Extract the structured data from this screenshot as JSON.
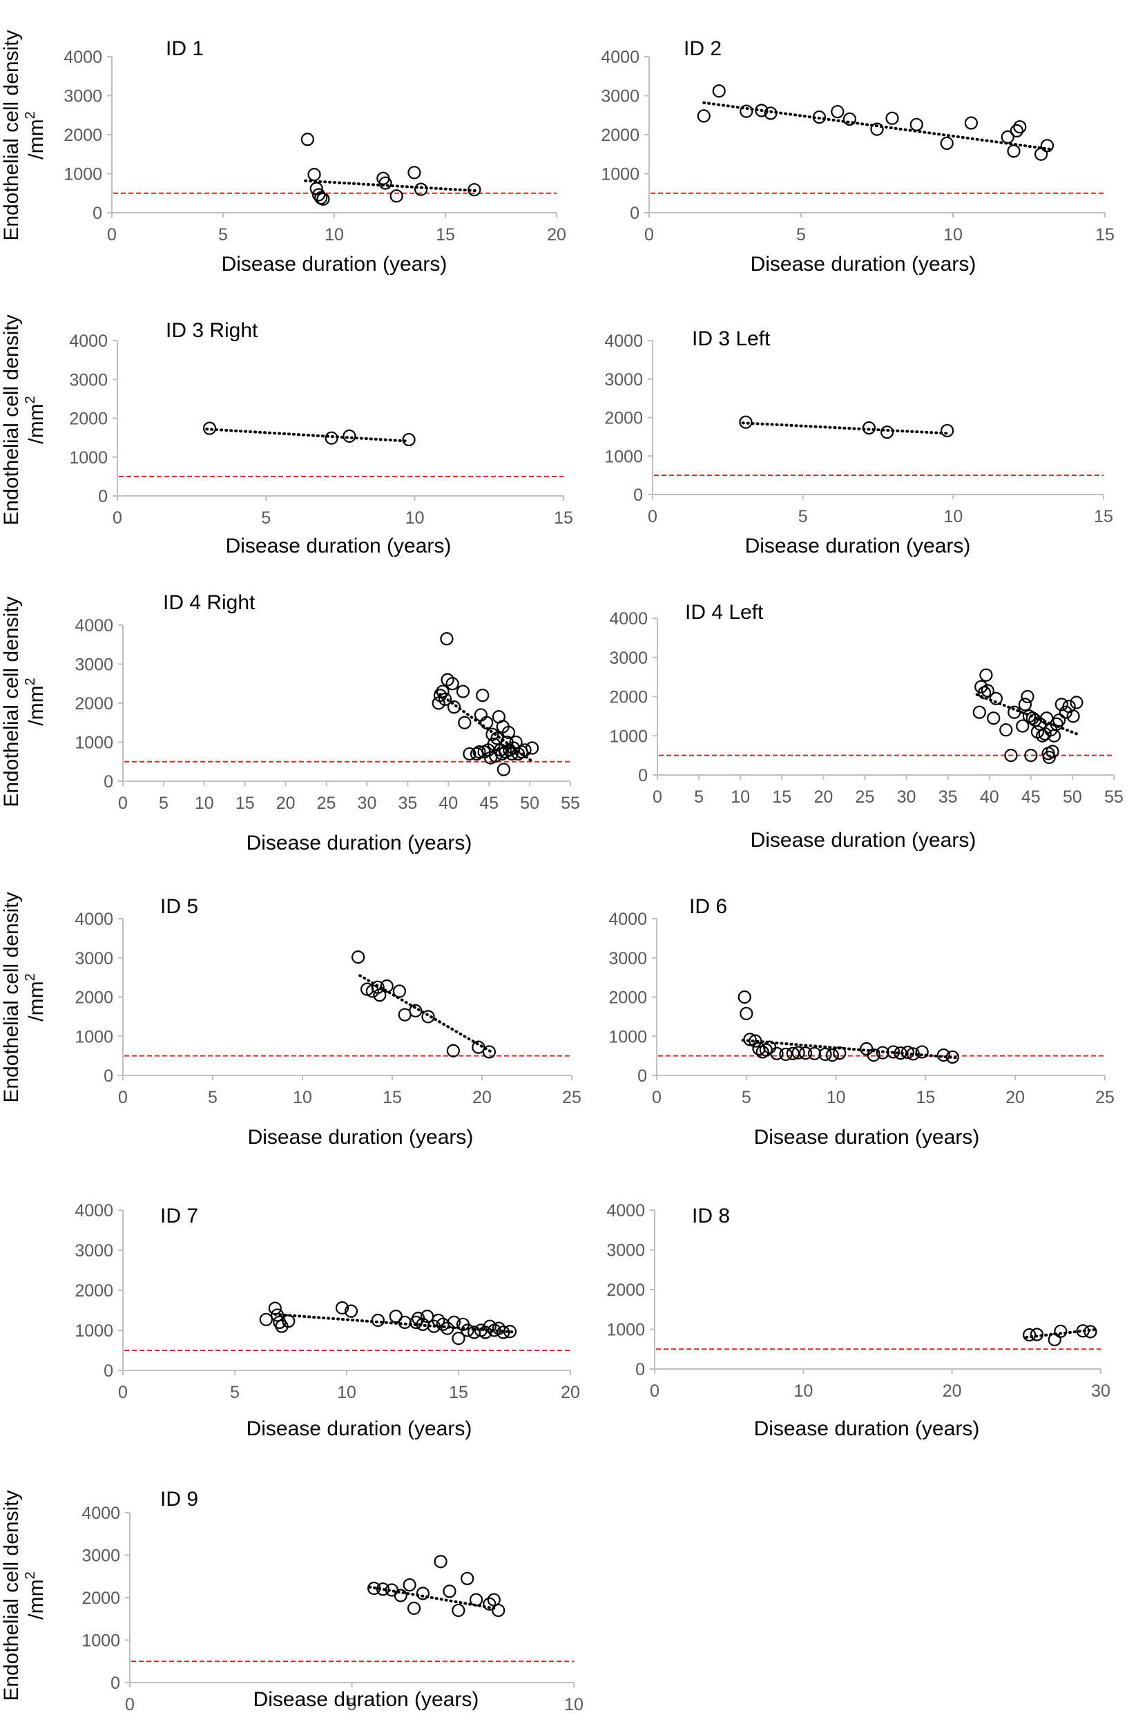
{
  "figure": {
    "y_axis_label_line1": "Endothelial cell density",
    "y_axis_label_line2": "/mm",
    "y_axis_label_sup": "2",
    "x_axis_label": "Disease duration (years)"
  },
  "colors": {
    "axis": "#bfbfbf",
    "tick_text": "#595959",
    "marker_stroke": "#000000",
    "trendline": "#000000",
    "threshold": "#d62728"
  },
  "chart_data": [
    {
      "type": "scatter",
      "title": "ID 1",
      "xlabel": "Disease duration (years)",
      "ylabel": "Endothelial cell density /mm2",
      "xlim": [
        0,
        20
      ],
      "ylim": [
        0,
        4000
      ],
      "xticks": [
        0,
        5,
        10,
        15,
        20
      ],
      "yticks": [
        0,
        1000,
        2000,
        3000,
        4000
      ],
      "threshold": 500,
      "trend": [
        [
          8.7,
          820
        ],
        [
          16.5,
          560
        ]
      ],
      "points": [
        [
          8.8,
          1880
        ],
        [
          9.1,
          980
        ],
        [
          9.2,
          620
        ],
        [
          9.3,
          460
        ],
        [
          9.4,
          380
        ],
        [
          9.5,
          350
        ],
        [
          12.2,
          880
        ],
        [
          12.3,
          760
        ],
        [
          12.8,
          430
        ],
        [
          13.6,
          1030
        ],
        [
          13.9,
          600
        ],
        [
          16.3,
          590
        ]
      ]
    },
    {
      "type": "scatter",
      "title": "ID 2",
      "xlabel": "Disease duration (years)",
      "ylabel": "Endothelial cell density /mm2",
      "xlim": [
        0,
        15
      ],
      "ylim": [
        0,
        4000
      ],
      "xticks": [
        0,
        5,
        10,
        15
      ],
      "yticks": [
        0,
        1000,
        2000,
        3000,
        4000
      ],
      "threshold": 500,
      "trend": [
        [
          1.8,
          2820
        ],
        [
          13.2,
          1630
        ]
      ],
      "points": [
        [
          1.8,
          2480
        ],
        [
          2.3,
          3120
        ],
        [
          3.2,
          2600
        ],
        [
          3.7,
          2620
        ],
        [
          4.0,
          2550
        ],
        [
          5.6,
          2450
        ],
        [
          6.2,
          2590
        ],
        [
          6.6,
          2400
        ],
        [
          7.5,
          2140
        ],
        [
          8.0,
          2420
        ],
        [
          8.8,
          2260
        ],
        [
          9.8,
          1780
        ],
        [
          10.6,
          2300
        ],
        [
          11.8,
          1940
        ],
        [
          12.0,
          1580
        ],
        [
          12.1,
          2100
        ],
        [
          12.2,
          2200
        ],
        [
          12.9,
          1500
        ],
        [
          13.1,
          1720
        ]
      ]
    },
    {
      "type": "scatter",
      "title": "ID 3 Right",
      "xlabel": "Disease duration (years)",
      "ylabel": "Endothelial cell density /mm2",
      "xlim": [
        0,
        15
      ],
      "ylim": [
        0,
        4000
      ],
      "xticks": [
        0,
        5,
        10,
        15
      ],
      "yticks": [
        0,
        1000,
        2000,
        3000,
        4000
      ],
      "threshold": 500,
      "trend": [
        [
          3.0,
          1720
        ],
        [
          9.8,
          1410
        ]
      ],
      "points": [
        [
          3.1,
          1740
        ],
        [
          7.2,
          1490
        ],
        [
          7.8,
          1540
        ],
        [
          9.8,
          1450
        ]
      ]
    },
    {
      "type": "scatter",
      "title": "ID 3 Left",
      "xlabel": "Disease duration (years)",
      "ylabel": "Endothelial cell density /mm2",
      "xlim": [
        0,
        15
      ],
      "ylim": [
        0,
        4000
      ],
      "xticks": [
        0,
        5,
        10,
        15
      ],
      "yticks": [
        0,
        1000,
        2000,
        3000,
        4000
      ],
      "threshold": 500,
      "trend": [
        [
          3.0,
          1860
        ],
        [
          9.8,
          1590
        ]
      ],
      "points": [
        [
          3.1,
          1880
        ],
        [
          7.2,
          1730
        ],
        [
          7.8,
          1620
        ],
        [
          9.8,
          1660
        ]
      ]
    },
    {
      "type": "scatter",
      "title": "ID 4 Right",
      "xlabel": "Disease duration (years)",
      "ylabel": "Endothelial cell density /mm2",
      "xlim": [
        0,
        55
      ],
      "ylim": [
        0,
        4000
      ],
      "xticks": [
        0,
        5,
        10,
        15,
        20,
        25,
        30,
        35,
        40,
        45,
        50,
        55
      ],
      "yticks": [
        0,
        1000,
        2000,
        3000,
        4000
      ],
      "threshold": 500,
      "trend": [
        [
          38.5,
          2300
        ],
        [
          50.5,
          480
        ]
      ],
      "points": [
        [
          38.8,
          2000
        ],
        [
          39.0,
          2200
        ],
        [
          39.3,
          2300
        ],
        [
          39.6,
          2100
        ],
        [
          39.8,
          3650
        ],
        [
          39.9,
          2600
        ],
        [
          40.5,
          2500
        ],
        [
          40.7,
          1900
        ],
        [
          41.8,
          2300
        ],
        [
          42.0,
          1500
        ],
        [
          42.6,
          700
        ],
        [
          43.5,
          700
        ],
        [
          43.8,
          750
        ],
        [
          44.0,
          1700
        ],
        [
          44.2,
          2200
        ],
        [
          44.4,
          750
        ],
        [
          44.7,
          1500
        ],
        [
          44.9,
          800
        ],
        [
          45.2,
          600
        ],
        [
          45.4,
          1200
        ],
        [
          45.6,
          950
        ],
        [
          45.8,
          650
        ],
        [
          46.0,
          1100
        ],
        [
          46.2,
          1650
        ],
        [
          46.4,
          800
        ],
        [
          46.6,
          700
        ],
        [
          46.7,
          1400
        ],
        [
          46.8,
          300
        ],
        [
          47.0,
          750
        ],
        [
          47.2,
          1000
        ],
        [
          47.4,
          1250
        ],
        [
          47.5,
          800
        ],
        [
          47.8,
          700
        ],
        [
          48.0,
          850
        ],
        [
          48.3,
          1000
        ],
        [
          48.6,
          700
        ],
        [
          49.0,
          750
        ],
        [
          49.4,
          800
        ],
        [
          50.3,
          850
        ]
      ]
    },
    {
      "type": "scatter",
      "title": "ID 4 Left",
      "xlabel": "Disease duration (years)",
      "ylabel": "Endothelial cell density /mm2",
      "xlim": [
        0,
        55
      ],
      "ylim": [
        0,
        4000
      ],
      "xticks": [
        0,
        5,
        10,
        15,
        20,
        25,
        30,
        35,
        40,
        45,
        50,
        55
      ],
      "yticks": [
        0,
        1000,
        2000,
        3000,
        4000
      ],
      "threshold": 500,
      "trend": [
        [
          38.5,
          2050
        ],
        [
          50.5,
          1050
        ]
      ],
      "points": [
        [
          38.8,
          1600
        ],
        [
          39.0,
          2250
        ],
        [
          39.4,
          2100
        ],
        [
          39.6,
          2550
        ],
        [
          39.8,
          2150
        ],
        [
          40.5,
          1450
        ],
        [
          40.8,
          1950
        ],
        [
          42.0,
          1150
        ],
        [
          42.6,
          500
        ],
        [
          43.0,
          1600
        ],
        [
          44.0,
          1250
        ],
        [
          44.3,
          1800
        ],
        [
          44.6,
          2000
        ],
        [
          44.8,
          1500
        ],
        [
          45.0,
          500
        ],
        [
          45.2,
          1450
        ],
        [
          45.5,
          1400
        ],
        [
          45.8,
          1100
        ],
        [
          46.1,
          1300
        ],
        [
          46.4,
          1000
        ],
        [
          46.7,
          1050
        ],
        [
          46.9,
          1450
        ],
        [
          47.1,
          550
        ],
        [
          47.2,
          450
        ],
        [
          47.4,
          1150
        ],
        [
          47.6,
          600
        ],
        [
          47.8,
          1000
        ],
        [
          48.1,
          1300
        ],
        [
          48.4,
          1400
        ],
        [
          48.7,
          1800
        ],
        [
          49.2,
          1600
        ],
        [
          49.6,
          1750
        ],
        [
          50.1,
          1500
        ],
        [
          50.5,
          1850
        ]
      ]
    },
    {
      "type": "scatter",
      "title": "ID 5",
      "xlabel": "Disease duration (years)",
      "ylabel": "Endothelial cell density /mm2",
      "xlim": [
        0,
        25
      ],
      "ylim": [
        0,
        4000
      ],
      "xticks": [
        0,
        5,
        10,
        15,
        20,
        25
      ],
      "yticks": [
        0,
        1000,
        2000,
        3000,
        4000
      ],
      "threshold": 500,
      "trend": [
        [
          13.2,
          2550
        ],
        [
          20.6,
          580
        ]
      ],
      "points": [
        [
          13.1,
          3020
        ],
        [
          13.6,
          2200
        ],
        [
          13.9,
          2150
        ],
        [
          14.2,
          2250
        ],
        [
          14.3,
          2050
        ],
        [
          14.7,
          2280
        ],
        [
          15.4,
          2150
        ],
        [
          15.7,
          1550
        ],
        [
          16.3,
          1650
        ],
        [
          17.0,
          1500
        ],
        [
          18.4,
          630
        ],
        [
          19.8,
          720
        ],
        [
          20.4,
          600
        ]
      ]
    },
    {
      "type": "scatter",
      "title": "ID 6",
      "xlabel": "Disease duration (years)",
      "ylabel": "Endothelial cell density /mm2",
      "xlim": [
        0,
        25
      ],
      "ylim": [
        0,
        4000
      ],
      "xticks": [
        0,
        5,
        10,
        15,
        20,
        25
      ],
      "yticks": [
        0,
        1000,
        2000,
        3000,
        4000
      ],
      "threshold": 500,
      "trend": [
        [
          4.8,
          900
        ],
        [
          16.8,
          450
        ]
      ],
      "points": [
        [
          4.9,
          2000
        ],
        [
          5.0,
          1580
        ],
        [
          5.2,
          920
        ],
        [
          5.5,
          880
        ],
        [
          5.7,
          680
        ],
        [
          5.9,
          600
        ],
        [
          6.1,
          650
        ],
        [
          6.3,
          720
        ],
        [
          6.7,
          560
        ],
        [
          7.2,
          540
        ],
        [
          7.6,
          560
        ],
        [
          7.9,
          580
        ],
        [
          8.3,
          570
        ],
        [
          8.8,
          560
        ],
        [
          9.4,
          540
        ],
        [
          9.8,
          520
        ],
        [
          10.2,
          570
        ],
        [
          11.7,
          680
        ],
        [
          12.1,
          520
        ],
        [
          12.6,
          580
        ],
        [
          13.2,
          600
        ],
        [
          13.6,
          570
        ],
        [
          14.0,
          590
        ],
        [
          14.3,
          550
        ],
        [
          14.8,
          600
        ],
        [
          16.0,
          520
        ],
        [
          16.5,
          470
        ]
      ]
    },
    {
      "type": "scatter",
      "title": "ID 7",
      "xlabel": "Disease duration (years)",
      "ylabel": "Endothelial cell density /mm2",
      "xlim": [
        0,
        20
      ],
      "ylim": [
        0,
        4000
      ],
      "xticks": [
        0,
        5,
        10,
        15,
        20
      ],
      "yticks": [
        0,
        1000,
        2000,
        3000,
        4000
      ],
      "threshold": 500,
      "trend": [
        [
          6.8,
          1400
        ],
        [
          17.4,
          960
        ]
      ],
      "points": [
        [
          6.4,
          1270
        ],
        [
          6.8,
          1550
        ],
        [
          6.9,
          1380
        ],
        [
          7.0,
          1200
        ],
        [
          7.1,
          1100
        ],
        [
          7.4,
          1230
        ],
        [
          9.8,
          1560
        ],
        [
          10.2,
          1480
        ],
        [
          11.4,
          1250
        ],
        [
          12.2,
          1350
        ],
        [
          12.6,
          1200
        ],
        [
          13.1,
          1200
        ],
        [
          13.2,
          1300
        ],
        [
          13.4,
          1150
        ],
        [
          13.6,
          1350
        ],
        [
          13.9,
          1100
        ],
        [
          14.1,
          1250
        ],
        [
          14.3,
          1150
        ],
        [
          14.5,
          1050
        ],
        [
          14.8,
          1200
        ],
        [
          15.0,
          800
        ],
        [
          15.2,
          1150
        ],
        [
          15.4,
          1000
        ],
        [
          15.7,
          950
        ],
        [
          16.0,
          1000
        ],
        [
          16.2,
          950
        ],
        [
          16.4,
          1100
        ],
        [
          16.6,
          1000
        ],
        [
          16.8,
          1050
        ],
        [
          17.0,
          950
        ],
        [
          17.3,
          970
        ]
      ]
    },
    {
      "type": "scatter",
      "title": "ID 8",
      "xlabel": "Disease duration (years)",
      "ylabel": "Endothelial cell density /mm2",
      "xlim": [
        0,
        30
      ],
      "ylim": [
        0,
        4000
      ],
      "xticks": [
        0,
        10,
        20,
        30
      ],
      "yticks": [
        0,
        1000,
        2000,
        3000,
        4000
      ],
      "threshold": 500,
      "trend": [
        [
          25.0,
          800
        ],
        [
          29.8,
          1000
        ]
      ],
      "points": [
        [
          25.2,
          860
        ],
        [
          25.7,
          870
        ],
        [
          26.9,
          740
        ],
        [
          27.3,
          950
        ],
        [
          28.8,
          960
        ],
        [
          29.3,
          940
        ]
      ]
    },
    {
      "type": "scatter",
      "title": "ID 9",
      "xlabel": "Disease duration (years)",
      "ylabel": "Endothelial cell density /mm2",
      "xlim": [
        0,
        10
      ],
      "ylim": [
        0,
        4000
      ],
      "xticks": [
        0,
        5,
        10
      ],
      "yticks": [
        0,
        1000,
        2000,
        3000,
        4000
      ],
      "threshold": 500,
      "trend": [
        [
          5.4,
          2250
        ],
        [
          8.2,
          1750
        ]
      ],
      "points": [
        [
          5.5,
          2220
        ],
        [
          5.7,
          2200
        ],
        [
          5.9,
          2180
        ],
        [
          6.1,
          2050
        ],
        [
          6.3,
          2300
        ],
        [
          6.4,
          1750
        ],
        [
          6.6,
          2100
        ],
        [
          7.0,
          2850
        ],
        [
          7.2,
          2150
        ],
        [
          7.4,
          1700
        ],
        [
          7.6,
          2450
        ],
        [
          7.8,
          1950
        ],
        [
          8.1,
          1850
        ],
        [
          8.2,
          1950
        ],
        [
          8.3,
          1700
        ]
      ]
    }
  ]
}
